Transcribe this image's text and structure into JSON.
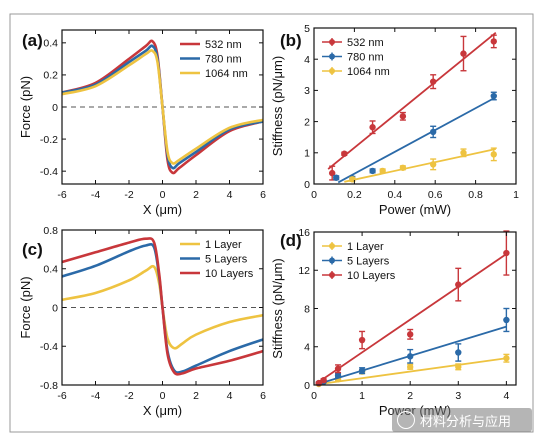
{
  "chart_data": [
    {
      "panel": "(a)",
      "type": "line",
      "xlabel": "X (μm)",
      "ylabel": "Force (pN)",
      "xlim": [
        -6,
        6
      ],
      "ylim": [
        -0.48,
        0.48
      ],
      "xticks": [
        -6,
        -4,
        -2,
        0,
        2,
        4,
        6
      ],
      "xtick_labels": [
        "-6",
        "-4",
        "-2",
        "0",
        "2",
        "4",
        "6"
      ],
      "yticks": [
        -0.4,
        -0.2,
        0,
        0.2,
        0.4
      ],
      "ytick_labels": [
        "-0.4",
        "-0.2",
        "0",
        "0.2",
        "0.4"
      ],
      "zero_line": true,
      "legend_position": "top-right",
      "series": [
        {
          "name": "532 nm",
          "color": "#c8373b",
          "x": [
            -6,
            -4,
            -2,
            -1,
            -0.6,
            -0.3,
            0,
            0.3,
            0.6,
            1,
            2,
            4,
            6
          ],
          "y": [
            0.09,
            0.15,
            0.3,
            0.38,
            0.41,
            0.32,
            0.0,
            -0.33,
            -0.41,
            -0.38,
            -0.3,
            -0.15,
            -0.09
          ]
        },
        {
          "name": "780 nm",
          "color": "#2b6aa8",
          "x": [
            -6,
            -4,
            -2,
            -1,
            -0.6,
            -0.3,
            0,
            0.3,
            0.6,
            1,
            2,
            4,
            6
          ],
          "y": [
            0.09,
            0.14,
            0.28,
            0.35,
            0.38,
            0.3,
            0.0,
            -0.3,
            -0.38,
            -0.35,
            -0.28,
            -0.14,
            -0.09
          ]
        },
        {
          "name": "1064 nm",
          "color": "#eec341",
          "x": [
            -6,
            -4,
            -2,
            -1,
            -0.6,
            -0.3,
            0,
            0.3,
            0.6,
            1,
            2,
            4,
            6
          ],
          "y": [
            0.08,
            0.13,
            0.26,
            0.33,
            0.35,
            0.28,
            0.0,
            -0.28,
            -0.35,
            -0.33,
            -0.26,
            -0.13,
            -0.08
          ]
        }
      ]
    },
    {
      "panel": "(b)",
      "type": "scatter",
      "xlabel": "Power (mW)",
      "ylabel": "Stiffness (pN/μm)",
      "xlim": [
        0,
        1
      ],
      "ylim": [
        0,
        5
      ],
      "xticks": [
        0,
        0.2,
        0.4,
        0.6,
        0.8,
        1
      ],
      "xtick_labels": [
        "0",
        "0.2",
        "0.4",
        "0.6",
        "0.8",
        "1"
      ],
      "yticks": [
        0,
        1,
        2,
        3,
        4,
        5
      ],
      "ytick_labels": [
        "0",
        "1",
        "2",
        "3",
        "4",
        "5"
      ],
      "legend_position": "top-left",
      "series": [
        {
          "name": "532 nm",
          "color": "#c8373b",
          "x": [
            0.09,
            0.15,
            0.29,
            0.44,
            0.59,
            0.74,
            0.89
          ],
          "y": [
            0.35,
            0.97,
            1.82,
            2.17,
            3.28,
            4.18,
            4.57
          ],
          "err": [
            0.22,
            0.05,
            0.2,
            0.12,
            0.22,
            0.55,
            0.2
          ],
          "fit": [
            [
              0.07,
              0.48
            ],
            [
              0.9,
              4.85
            ]
          ]
        },
        {
          "name": "780 nm",
          "color": "#2b6aa8",
          "x": [
            0.11,
            0.19,
            0.29,
            0.59,
            0.89
          ],
          "y": [
            0.2,
            0.18,
            0.42,
            1.67,
            2.82
          ],
          "err": [
            0.06,
            0.06,
            0.06,
            0.18,
            0.12
          ],
          "fit": [
            [
              0.12,
              0.05
            ],
            [
              0.9,
              2.78
            ]
          ]
        },
        {
          "name": "1064 nm",
          "color": "#eec341",
          "x": [
            0.19,
            0.34,
            0.44,
            0.59,
            0.74,
            0.89
          ],
          "y": [
            0.15,
            0.42,
            0.52,
            0.63,
            1.0,
            0.95
          ],
          "err": [
            0.06,
            0.06,
            0.06,
            0.17,
            0.12,
            0.2
          ],
          "fit": [
            [
              0.15,
              0.07
            ],
            [
              0.9,
              1.12
            ]
          ]
        }
      ]
    },
    {
      "panel": "(c)",
      "type": "line",
      "xlabel": "X (μm)",
      "ylabel": "Force (pN)",
      "xlim": [
        -6,
        6
      ],
      "ylim": [
        -0.8,
        0.8
      ],
      "xticks": [
        -6,
        -4,
        -2,
        0,
        2,
        4,
        6
      ],
      "xtick_labels": [
        "-6",
        "-4",
        "-2",
        "0",
        "2",
        "4",
        "6"
      ],
      "yticks": [
        -0.8,
        -0.4,
        0,
        0.4,
        0.8
      ],
      "ytick_labels": [
        "-0.8",
        "-0.4",
        "0",
        "0.4",
        "0.8"
      ],
      "zero_line": true,
      "legend_position": "top-right",
      "series": [
        {
          "name": "1 Layer",
          "color": "#eec341",
          "x": [
            -6,
            -4,
            -2,
            -1,
            -0.5,
            -0.2,
            0,
            0.3,
            0.7,
            1.2,
            2,
            4,
            6
          ],
          "y": [
            0.08,
            0.15,
            0.28,
            0.38,
            0.42,
            0.25,
            0.0,
            -0.32,
            -0.42,
            -0.37,
            -0.28,
            -0.15,
            -0.08
          ]
        },
        {
          "name": "5 Layers",
          "color": "#2b6aa8",
          "x": [
            -6,
            -4,
            -2,
            -1,
            -0.5,
            -0.2,
            0,
            0.3,
            0.7,
            1.2,
            2,
            4,
            6
          ],
          "y": [
            0.32,
            0.43,
            0.58,
            0.64,
            0.62,
            0.32,
            0.0,
            -0.45,
            -0.65,
            -0.66,
            -0.6,
            -0.45,
            -0.33
          ]
        },
        {
          "name": "10 Layers",
          "color": "#c8373b",
          "x": [
            -6,
            -4,
            -2,
            -1,
            -0.5,
            -0.2,
            0,
            0.3,
            0.7,
            1.2,
            2,
            4,
            6
          ],
          "y": [
            0.47,
            0.57,
            0.67,
            0.71,
            0.67,
            0.35,
            0.0,
            -0.48,
            -0.67,
            -0.68,
            -0.63,
            -0.55,
            -0.45
          ]
        }
      ]
    },
    {
      "panel": "(d)",
      "type": "scatter",
      "xlabel": "Power (mW)",
      "ylabel": "Stiffness (pN/μm)",
      "xlim": [
        0,
        4.2
      ],
      "ylim": [
        0,
        16
      ],
      "xticks": [
        0,
        1,
        2,
        3,
        4
      ],
      "xtick_labels": [
        "0",
        "1",
        "2",
        "3",
        "4"
      ],
      "yticks": [
        0,
        4,
        8,
        12,
        16
      ],
      "ytick_labels": [
        "0",
        "4",
        "8",
        "12",
        "16"
      ],
      "legend_position": "top-left",
      "series": [
        {
          "name": "1 Layer",
          "color": "#eec341",
          "x": [
            0.1,
            0.2,
            0.5,
            1,
            2,
            3,
            4
          ],
          "y": [
            0.1,
            0.3,
            0.6,
            1.4,
            1.9,
            1.9,
            2.8
          ],
          "err": [
            0.1,
            0.1,
            0.15,
            0.2,
            0.25,
            0.3,
            0.4
          ],
          "fit": [
            [
              0.05,
              0.05
            ],
            [
              4.0,
              2.8
            ]
          ]
        },
        {
          "name": "5 Layers",
          "color": "#2b6aa8",
          "x": [
            0.1,
            0.2,
            0.5,
            1,
            2,
            3,
            4
          ],
          "y": [
            0.2,
            0.35,
            1.0,
            1.5,
            3.0,
            3.4,
            6.8
          ],
          "err": [
            0.1,
            0.1,
            0.2,
            0.3,
            0.7,
            0.9,
            1.2
          ],
          "fit": [
            [
              0.05,
              0.05
            ],
            [
              4.0,
              6.1
            ]
          ]
        },
        {
          "name": "10 Layers",
          "color": "#c8373b",
          "x": [
            0.1,
            0.2,
            0.5,
            1,
            2,
            3,
            4
          ],
          "y": [
            0.2,
            0.5,
            1.7,
            4.7,
            5.3,
            10.5,
            13.8
          ],
          "err": [
            0.1,
            0.15,
            0.4,
            0.9,
            0.5,
            1.7,
            2.3
          ],
          "fit": [
            [
              0.05,
              0.15
            ],
            [
              4.0,
              13.7
            ]
          ]
        }
      ]
    }
  ],
  "watermark": {
    "text": "材料分析与应用"
  }
}
